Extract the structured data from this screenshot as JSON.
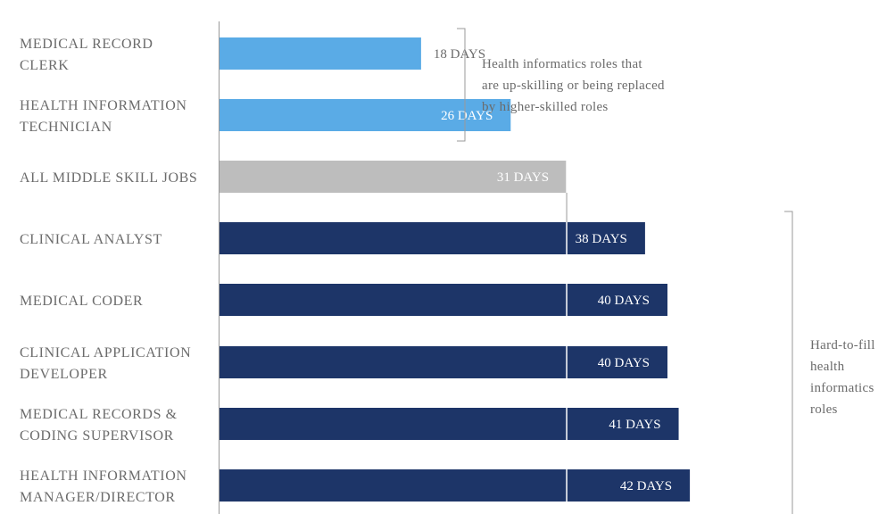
{
  "chart_data": {
    "type": "bar",
    "orientation": "horizontal",
    "unit_suffix": " DAYS",
    "categories": [
      [
        "MEDICAL RECORD",
        "CLERK"
      ],
      [
        "HEALTH INFORMATION",
        "TECHNICIAN"
      ],
      [
        "ALL MIDDLE SKILL JOBS"
      ],
      [
        "CLINICAL ANALYST"
      ],
      [
        "MEDICAL CODER"
      ],
      [
        "CLINICAL APPLICATION",
        "DEVELOPER"
      ],
      [
        "MEDICAL RECORDS &",
        "CODING SUPERVISOR"
      ],
      [
        "HEALTH INFORMATION",
        "MANAGER/DIRECTOR"
      ]
    ],
    "values": [
      18,
      26,
      31,
      38,
      40,
      40,
      41,
      42
    ],
    "value_labels": [
      "18 DAYS",
      "26 DAYS",
      "31 DAYS",
      "38 DAYS",
      "40 DAYS",
      "40 DAYS",
      "41 DAYS",
      "42 DAYS"
    ],
    "groups": [
      "upskilling",
      "upskilling",
      "baseline",
      "hard",
      "hard",
      "hard",
      "hard",
      "hard"
    ],
    "colors": {
      "upskilling": "#5aabe6",
      "baseline": "#bdbdbd",
      "hard": "#1d3568",
      "axis": "#999999",
      "label_text": "#6b6b6b"
    },
    "reference_value": 31,
    "annotations": [
      {
        "group": "upskilling",
        "lines": [
          "Health informatics roles that",
          "are up-skilling or being replaced",
          "by higher-skilled roles"
        ]
      },
      {
        "group": "hard",
        "lines": [
          "Hard-to-fill",
          "health",
          "informatics",
          "roles"
        ]
      }
    ],
    "title": "",
    "xlabel": "",
    "ylabel": "",
    "grid": false
  }
}
